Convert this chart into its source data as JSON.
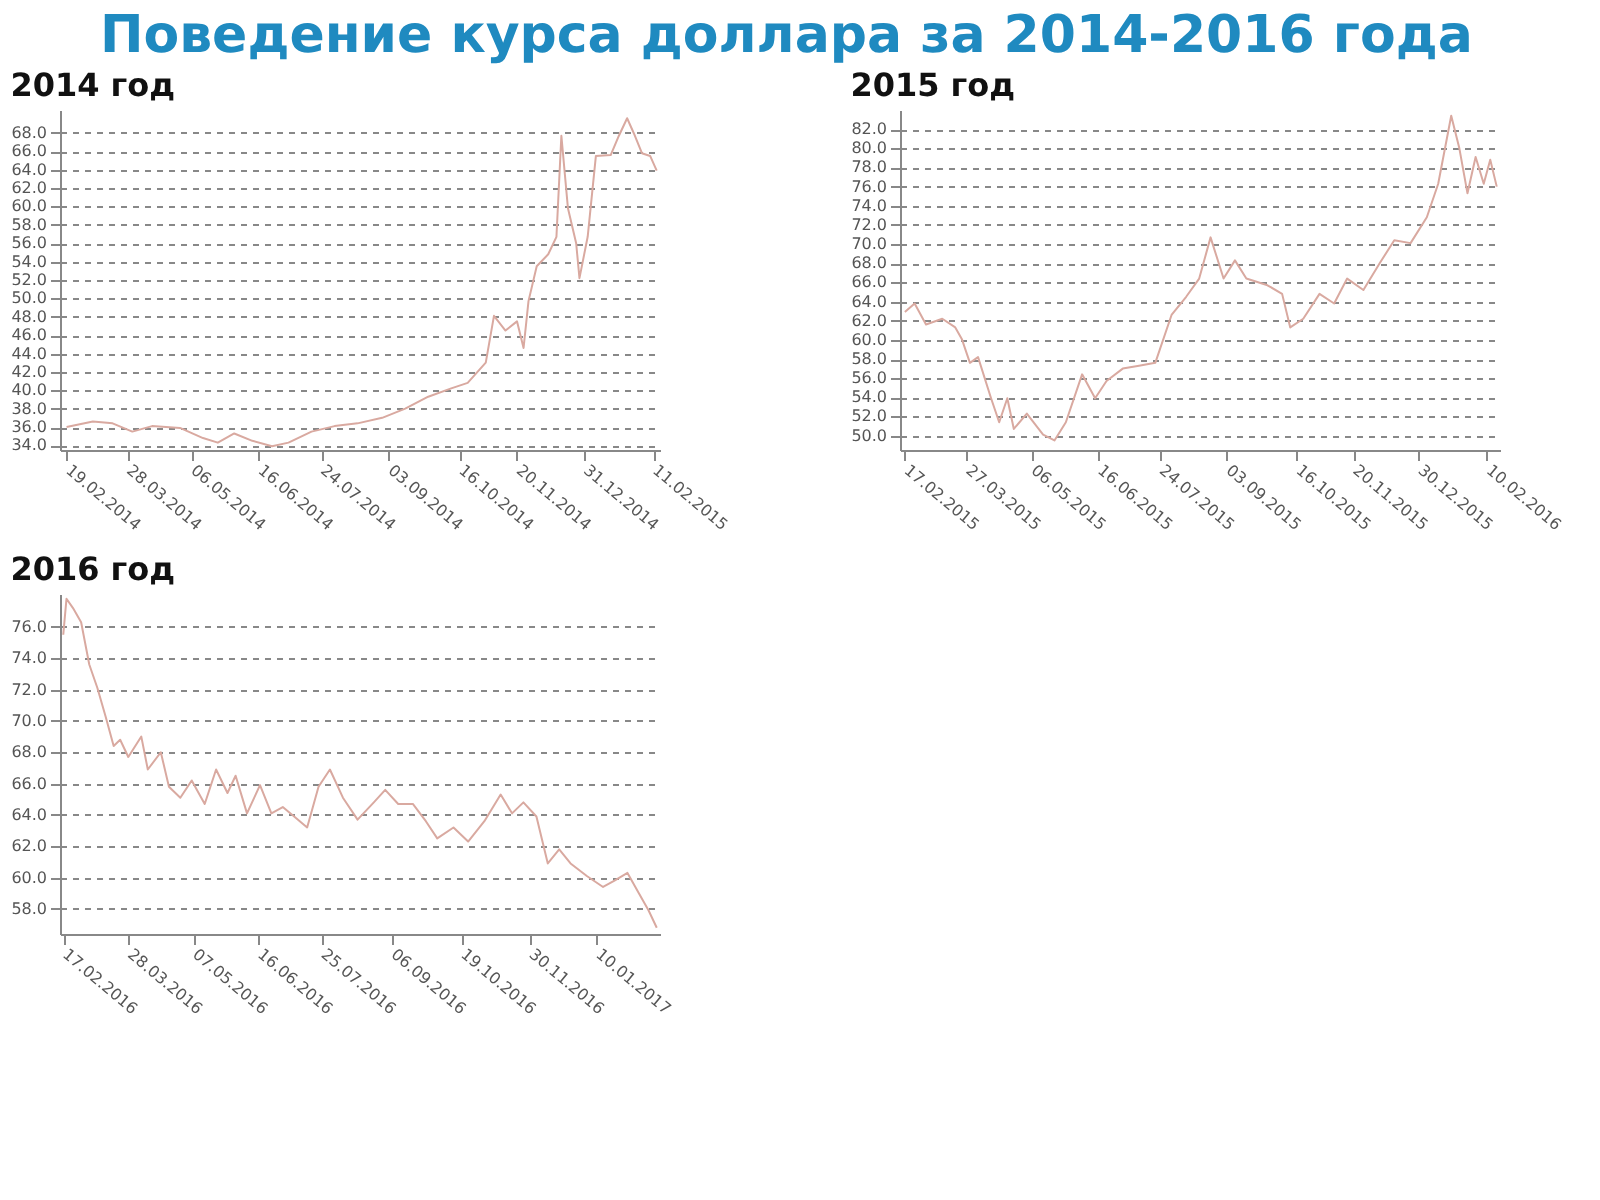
{
  "chart_data": [
    {
      "type": "line",
      "title": "Поведение курса доллара за 2014-2016 года",
      "subtitle": "2014 год",
      "grid": "y",
      "xlim": [
        "2014-02-15",
        "2015-02-15"
      ],
      "ylim": [
        33.5,
        70.5
      ],
      "yticks": [
        {
          "value": 34,
          "label": "34.0"
        },
        {
          "value": 36,
          "label": "36.0"
        },
        {
          "value": 38,
          "label": "38.0"
        },
        {
          "value": 40,
          "label": "40.0"
        },
        {
          "value": 42,
          "label": "42.0"
        },
        {
          "value": 44,
          "label": "44.0"
        },
        {
          "value": 46,
          "label": "46.0"
        },
        {
          "value": 48,
          "label": "48.0"
        },
        {
          "value": 50,
          "label": "50.0"
        },
        {
          "value": 52,
          "label": "52.0"
        },
        {
          "value": 54,
          "label": "54.0"
        },
        {
          "value": 56,
          "label": "56.0"
        },
        {
          "value": 58,
          "label": "58.0"
        },
        {
          "value": 60,
          "label": "60.0"
        },
        {
          "value": 62,
          "label": "62.0"
        },
        {
          "value": 64,
          "label": "64.0"
        },
        {
          "value": 66,
          "label": "66.0"
        },
        {
          "value": 68,
          "label": "68.0"
        }
      ],
      "xticks": [
        {
          "value": "2014-02-19",
          "label": "19.02.2014"
        },
        {
          "value": "2014-03-28",
          "label": "28.03.2014"
        },
        {
          "value": "2014-05-06",
          "label": "06.05.2014"
        },
        {
          "value": "2014-06-16",
          "label": "16.06.2014"
        },
        {
          "value": "2014-07-24",
          "label": "24.07.2014"
        },
        {
          "value": "2014-09-03",
          "label": "03.09.2014"
        },
        {
          "value": "2014-10-16",
          "label": "16.10.2014"
        },
        {
          "value": "2014-11-20",
          "label": "20.11.2014"
        },
        {
          "value": "2014-12-31",
          "label": "31.12.2014"
        },
        {
          "value": "2015-02-11",
          "label": "11.02.2015"
        }
      ],
      "series": [
        {
          "color": "#d9a9a0",
          "x": [
            "2014-02-19",
            "2014-03-07",
            "2014-03-19",
            "2014-03-31",
            "2014-04-12",
            "2014-04-29",
            "2014-05-13",
            "2014-05-22",
            "2014-06-01",
            "2014-06-12",
            "2014-06-24",
            "2014-07-04",
            "2014-07-18",
            "2014-08-01",
            "2014-08-15",
            "2014-08-30",
            "2014-09-13",
            "2014-09-27",
            "2014-10-11",
            "2014-10-21",
            "2014-11-01",
            "2014-11-06",
            "2014-11-13",
            "2014-11-20",
            "2014-11-24",
            "2014-11-27",
            "2014-12-02",
            "2014-12-09",
            "2014-12-14",
            "2014-12-17",
            "2014-12-21",
            "2014-12-26",
            "2014-12-28",
            "2015-01-02",
            "2015-01-07",
            "2015-01-16",
            "2015-01-21",
            "2015-01-26",
            "2015-01-30",
            "2015-02-04",
            "2015-02-09",
            "2015-02-13"
          ],
          "values": [
            36.0,
            36.6,
            36.4,
            35.5,
            36.1,
            35.9,
            34.8,
            34.3,
            35.3,
            34.5,
            33.9,
            34.3,
            35.5,
            36.1,
            36.4,
            37.0,
            38.0,
            39.3,
            40.2,
            40.8,
            43.0,
            48.1,
            46.5,
            47.5,
            44.6,
            49.7,
            53.5,
            54.8,
            56.7,
            67.7,
            59.8,
            56.0,
            52.2,
            56.7,
            65.5,
            65.6,
            67.7,
            69.6,
            68.0,
            65.8,
            65.5,
            63.9
          ]
        }
      ]
    },
    {
      "type": "line",
      "subtitle": "2015 год",
      "grid": "y",
      "xlim": [
        "2015-02-14",
        "2016-02-18"
      ],
      "ylim": [
        48.5,
        84
      ],
      "yticks": [
        {
          "value": 50,
          "label": "50.0"
        },
        {
          "value": 52,
          "label": "52.0"
        },
        {
          "value": 54,
          "label": "54.0"
        },
        {
          "value": 56,
          "label": "56.0"
        },
        {
          "value": 58,
          "label": "58.0"
        },
        {
          "value": 60,
          "label": "60.0"
        },
        {
          "value": 62,
          "label": "62.0"
        },
        {
          "value": 64,
          "label": "64.0"
        },
        {
          "value": 66,
          "label": "66.0"
        },
        {
          "value": 68,
          "label": "68.0"
        },
        {
          "value": 70,
          "label": "70.0"
        },
        {
          "value": 72,
          "label": "72.0"
        },
        {
          "value": 74,
          "label": "74.0"
        },
        {
          "value": 76,
          "label": "76.0"
        },
        {
          "value": 78,
          "label": "78.0"
        },
        {
          "value": 80,
          "label": "80.0"
        },
        {
          "value": 82,
          "label": "82.0"
        }
      ],
      "xticks": [
        {
          "value": "2015-02-17",
          "label": "17.02.2015"
        },
        {
          "value": "2015-03-27",
          "label": "27.03.2015"
        },
        {
          "value": "2015-05-06",
          "label": "06.05.2015"
        },
        {
          "value": "2015-06-16",
          "label": "16.06.2015"
        },
        {
          "value": "2015-07-24",
          "label": "24.07.2015"
        },
        {
          "value": "2015-09-03",
          "label": "03.09.2015"
        },
        {
          "value": "2015-10-16",
          "label": "16.10.2015"
        },
        {
          "value": "2015-11-20",
          "label": "20.11.2015"
        },
        {
          "value": "2015-12-30",
          "label": "30.12.2015"
        },
        {
          "value": "2016-02-10",
          "label": "10.02.2016"
        }
      ],
      "series": [
        {
          "color": "#d9a9a0",
          "x": [
            "2015-02-17",
            "2015-02-23",
            "2015-03-02",
            "2015-03-12",
            "2015-03-20",
            "2015-03-24",
            "2015-03-29",
            "2015-04-03",
            "2015-04-11",
            "2015-04-16",
            "2015-04-21",
            "2015-04-25",
            "2015-05-03",
            "2015-05-13",
            "2015-05-20",
            "2015-05-27",
            "2015-06-06",
            "2015-06-14",
            "2015-06-21",
            "2015-07-01",
            "2015-07-11",
            "2015-07-21",
            "2015-07-31",
            "2015-08-09",
            "2015-08-17",
            "2015-08-24",
            "2015-09-01",
            "2015-09-08",
            "2015-09-15",
            "2015-09-28",
            "2015-10-07",
            "2015-10-12",
            "2015-10-20",
            "2015-10-30",
            "2015-11-08",
            "2015-11-16",
            "2015-11-26",
            "2015-12-06",
            "2015-12-15",
            "2015-12-25",
            "2016-01-04",
            "2016-01-11",
            "2016-01-19",
            "2016-01-24",
            "2016-01-29",
            "2016-02-03",
            "2016-02-08",
            "2016-02-12",
            "2016-02-16"
          ],
          "values": [
            62.9,
            63.8,
            61.6,
            62.2,
            61.3,
            60.1,
            57.6,
            58.2,
            53.9,
            51.4,
            53.9,
            50.7,
            52.3,
            50.1,
            49.5,
            51.4,
            56.4,
            53.9,
            55.7,
            57.0,
            57.3,
            57.6,
            62.6,
            64.5,
            66.4,
            70.7,
            66.4,
            68.3,
            66.4,
            65.7,
            64.8,
            61.3,
            62.2,
            64.8,
            63.8,
            66.4,
            65.2,
            68.0,
            70.4,
            70.1,
            72.8,
            76.3,
            83.4,
            80.0,
            75.3,
            79.1,
            76.3,
            78.8,
            76.0
          ]
        }
      ]
    },
    {
      "type": "line",
      "subtitle": "2016 год",
      "grid": "y",
      "xlim": [
        "2016-02-15",
        "2017-02-18"
      ],
      "ylim": [
        56.4,
        78.1
      ],
      "yticks": [
        {
          "value": 58,
          "label": "58.0"
        },
        {
          "value": 60,
          "label": "60.0"
        },
        {
          "value": 62,
          "label": "62.0"
        },
        {
          "value": 64,
          "label": "64.0"
        },
        {
          "value": 66,
          "label": "66.0"
        },
        {
          "value": 68,
          "label": "68.0"
        },
        {
          "value": 70,
          "label": "70.0"
        },
        {
          "value": 72,
          "label": "72.0"
        },
        {
          "value": 74,
          "label": "74.0"
        },
        {
          "value": 76,
          "label": "76.0"
        }
      ],
      "xticks": [
        {
          "value": "2016-02-17",
          "label": "17.02.2016"
        },
        {
          "value": "2016-03-28",
          "label": "28.03.2016"
        },
        {
          "value": "2016-05-07",
          "label": "07.05.2016"
        },
        {
          "value": "2016-06-16",
          "label": "16.06.2016"
        },
        {
          "value": "2016-07-25",
          "label": "25.07.2016"
        },
        {
          "value": "2016-09-06",
          "label": "06.09.2016"
        },
        {
          "value": "2016-10-19",
          "label": "19.10.2016"
        },
        {
          "value": "2016-11-30",
          "label": "30.11.2016"
        },
        {
          "value": "2017-01-10",
          "label": "10.01.2017"
        }
      ],
      "series": [
        {
          "color": "#d9a9a0",
          "x": [
            "2016-02-17",
            "2016-02-19",
            "2016-02-23",
            "2016-02-28",
            "2016-03-04",
            "2016-03-09",
            "2016-03-14",
            "2016-03-19",
            "2016-03-23",
            "2016-03-28",
            "2016-04-05",
            "2016-04-09",
            "2016-04-17",
            "2016-04-22",
            "2016-04-29",
            "2016-05-06",
            "2016-05-14",
            "2016-05-21",
            "2016-05-28",
            "2016-06-02",
            "2016-06-09",
            "2016-06-17",
            "2016-06-24",
            "2016-07-01",
            "2016-07-08",
            "2016-07-16",
            "2016-07-23",
            "2016-07-30",
            "2016-08-07",
            "2016-08-16",
            "2016-08-26",
            "2016-09-02",
            "2016-09-10",
            "2016-09-19",
            "2016-09-27",
            "2016-10-04",
            "2016-10-14",
            "2016-10-23",
            "2016-11-02",
            "2016-11-12",
            "2016-11-19",
            "2016-11-26",
            "2016-12-04",
            "2016-12-11",
            "2016-12-18",
            "2016-12-25",
            "2017-01-04",
            "2017-01-14",
            "2017-01-21",
            "2017-01-29",
            "2017-02-05",
            "2017-02-11",
            "2017-02-16"
          ],
          "values": [
            75.5,
            77.8,
            77.2,
            76.3,
            73.6,
            72.1,
            70.3,
            68.4,
            68.8,
            67.7,
            69.0,
            66.9,
            68.0,
            65.8,
            65.1,
            66.2,
            64.7,
            66.9,
            65.4,
            66.5,
            64.1,
            65.9,
            64.1,
            64.5,
            63.9,
            63.2,
            65.8,
            66.9,
            65.1,
            63.7,
            64.8,
            65.6,
            64.7,
            64.7,
            63.6,
            62.5,
            63.2,
            62.3,
            63.6,
            65.3,
            64.1,
            64.8,
            63.9,
            60.9,
            61.8,
            60.9,
            60.1,
            59.4,
            59.8,
            60.3,
            59.0,
            57.9,
            56.8
          ]
        }
      ]
    }
  ]
}
